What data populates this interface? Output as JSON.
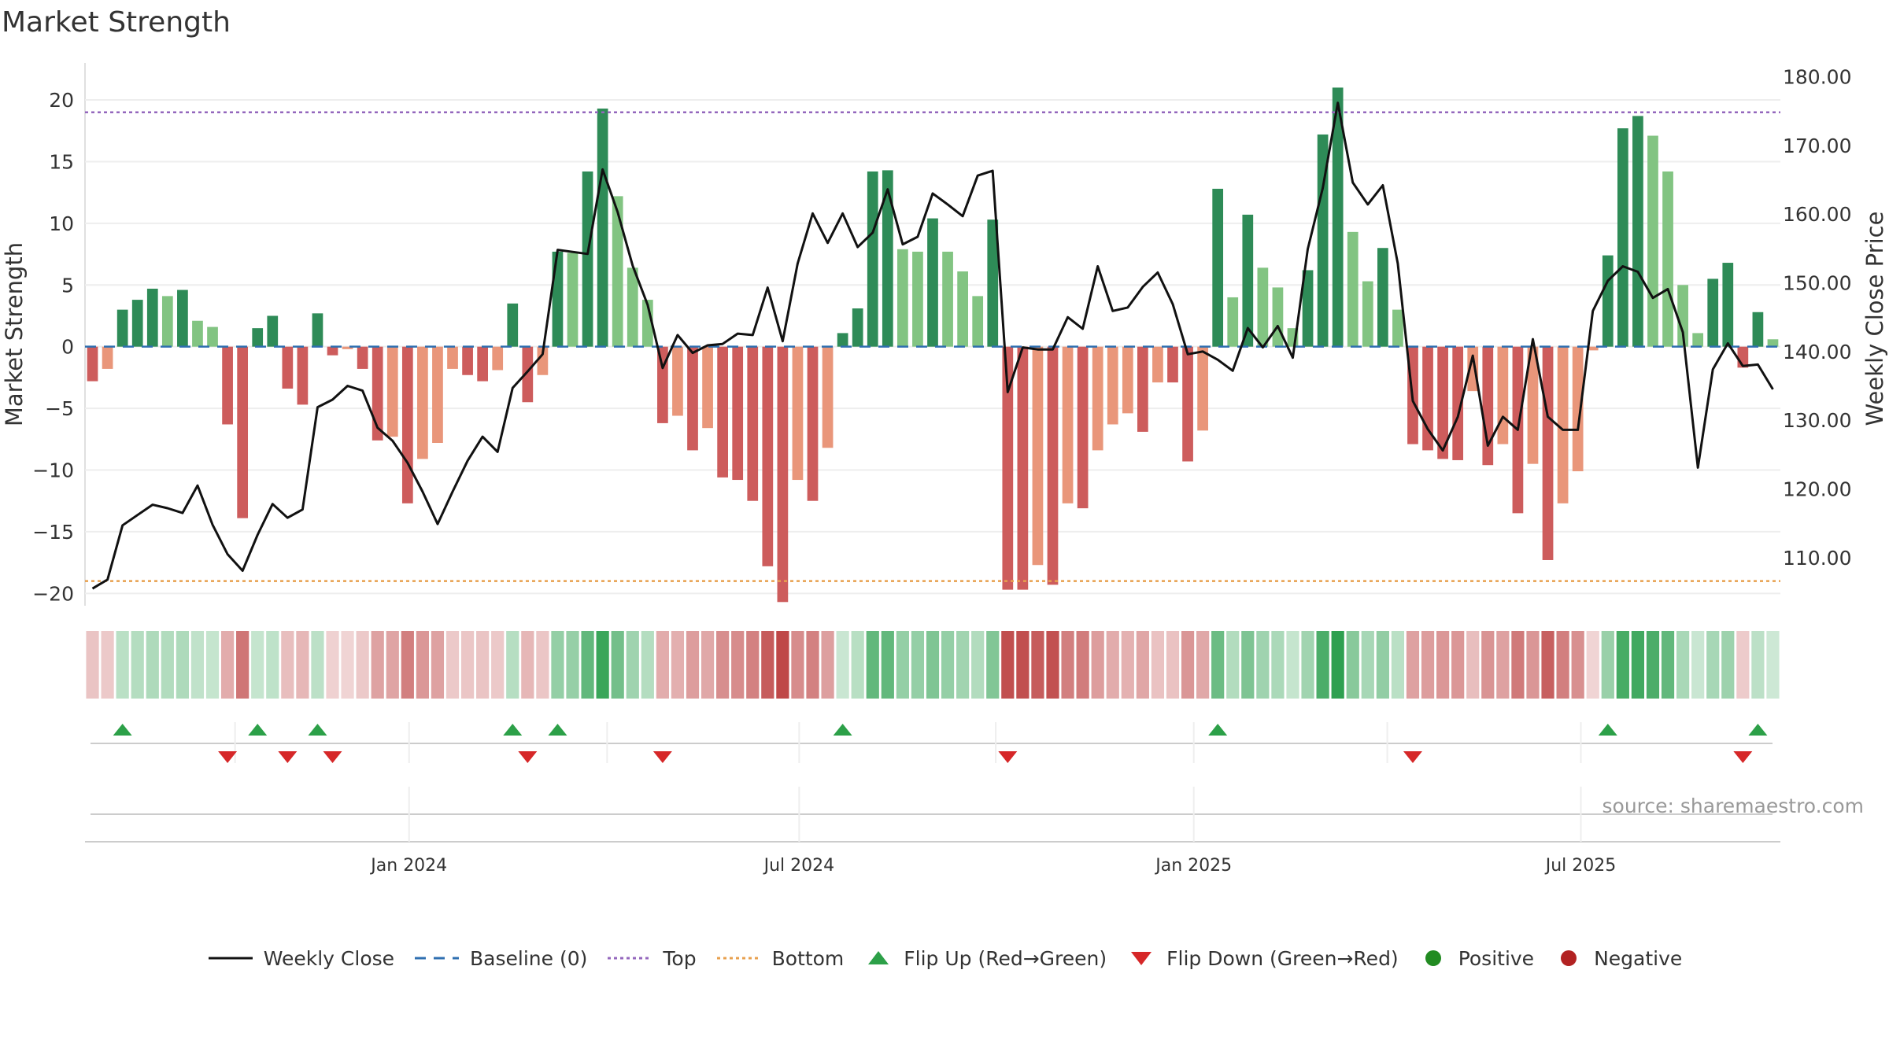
{
  "chart_data": {
    "type": "bar+line",
    "title": "Market Strength",
    "ylabel_left": "Market Strength",
    "ylabel_right": "Weekly Close Price",
    "ylim_left": [
      -21,
      23
    ],
    "ylim_right": [
      103,
      182
    ],
    "yticks_left": [
      20,
      15,
      10,
      5,
      0,
      -5,
      -10,
      -15,
      -20
    ],
    "ytick_labels_left": [
      "20",
      "15",
      "10",
      "5",
      "0",
      "−5",
      "−10",
      "−15",
      "−20"
    ],
    "yticks_right": [
      180,
      170,
      160,
      150,
      140,
      130,
      120,
      110
    ],
    "ytick_labels_right": [
      "180.00",
      "170.00",
      "160.00",
      "150.00",
      "140.00",
      "130.00",
      "120.00",
      "110.00"
    ],
    "x_start": "2023-08-07",
    "x_interval_days": 7,
    "x_ticks": [
      {
        "label": "Jan 2024",
        "week": 21.1
      },
      {
        "label": "Jul 2024",
        "week": 47.1
      },
      {
        "label": "Jan 2025",
        "week": 73.4
      },
      {
        "label": "Jul 2025",
        "week": 99.2
      }
    ],
    "top_line": 19,
    "bottom_line": -19,
    "strength": [
      -2.8,
      -1.8,
      3.0,
      3.8,
      4.7,
      4.1,
      4.6,
      2.1,
      1.6,
      -6.3,
      -13.9,
      1.5,
      2.5,
      -3.4,
      -4.7,
      2.7,
      -0.7,
      -0.2,
      -1.8,
      -7.6,
      -7.3,
      -12.7,
      -9.1,
      -7.8,
      -1.8,
      -2.3,
      -2.8,
      -1.9,
      3.5,
      -4.5,
      -2.3,
      7.7,
      7.6,
      14.2,
      19.3,
      12.2,
      6.4,
      3.8,
      -6.2,
      -5.6,
      -8.4,
      -6.6,
      -10.6,
      -10.8,
      -12.5,
      -17.8,
      -20.7,
      -10.8,
      -12.5,
      -8.2,
      1.1,
      3.1,
      14.2,
      14.3,
      7.9,
      7.7,
      10.4,
      7.7,
      6.1,
      4.1,
      10.3,
      -19.7,
      -19.7,
      -17.7,
      -19.3,
      -12.7,
      -13.1,
      -8.4,
      -6.3,
      -5.4,
      -6.9,
      -2.9,
      -2.9,
      -9.3,
      -6.8,
      12.8,
      4.0,
      10.7,
      6.4,
      4.8,
      1.5,
      6.2,
      17.2,
      21.0,
      9.3,
      5.3,
      8.0,
      3.0,
      -7.9,
      -8.4,
      -9.1,
      -9.2,
      -3.6,
      -9.6,
      -7.9,
      -13.5,
      -9.5,
      -17.3,
      -12.7,
      -10.1,
      -0.3,
      7.4,
      17.7,
      18.7,
      17.1,
      14.2,
      5.0,
      1.1,
      5.5,
      6.8,
      -1.7,
      2.8,
      0.6
    ],
    "close": [
      105.5,
      106.8,
      114.7,
      116.2,
      117.7,
      117.2,
      116.5,
      120.5,
      114.8,
      110.5,
      108.1,
      113.3,
      117.8,
      115.8,
      117.0,
      131.9,
      133.0,
      135.0,
      134.3,
      128.9,
      127.0,
      123.8,
      119.6,
      114.9,
      119.6,
      124.1,
      127.6,
      125.4,
      134.7,
      137.1,
      139.6,
      154.8,
      154.5,
      154.2,
      166.5,
      160.3,
      152.5,
      146.8,
      137.6,
      142.4,
      139.8,
      140.9,
      141.1,
      142.6,
      142.4,
      149.3,
      141.5,
      152.8,
      160.1,
      155.8,
      160.1,
      155.2,
      157.3,
      163.6,
      155.6,
      156.7,
      163.0,
      161.4,
      159.7,
      165.6,
      166.3,
      134.1,
      140.6,
      140.3,
      140.3,
      145.0,
      143.3,
      152.4,
      145.9,
      146.4,
      149.4,
      151.5,
      146.9,
      139.6,
      140.0,
      138.8,
      137.2,
      143.4,
      140.6,
      143.7,
      139.1,
      154.9,
      163.8,
      176.2,
      164.6,
      161.4,
      164.2,
      152.8,
      132.8,
      128.7,
      125.6,
      130.5,
      139.4,
      126.3,
      130.5,
      128.6,
      141.8,
      130.5,
      128.6,
      128.6,
      145.9,
      150.3,
      152.4,
      151.6,
      147.8,
      149.1,
      142.8,
      123.1,
      137.4,
      141.2,
      137.9,
      138.1,
      134.5
    ],
    "flip_up_weeks": [
      2,
      11,
      15,
      28,
      31,
      50,
      75,
      101,
      111
    ],
    "flip_down_weeks": [
      9,
      13,
      16,
      29,
      38,
      61,
      88,
      110
    ],
    "series": [
      {
        "name": "Weekly Close",
        "color": "#111111"
      },
      {
        "name": "Baseline (0)",
        "color": "#2f6fb0"
      },
      {
        "name": "Top",
        "color": "#9467bd"
      },
      {
        "name": "Bottom",
        "color": "#e8a04e"
      },
      {
        "name": "Flip Up (Red→Green)",
        "color": "#2ca048"
      },
      {
        "name": "Flip Down (Green→Red)",
        "color": "#d62728"
      },
      {
        "name": "Positive",
        "color": "#228b22"
      },
      {
        "name": "Negative",
        "color": "#b22222"
      }
    ],
    "source": "source: sharemaestro.com"
  }
}
